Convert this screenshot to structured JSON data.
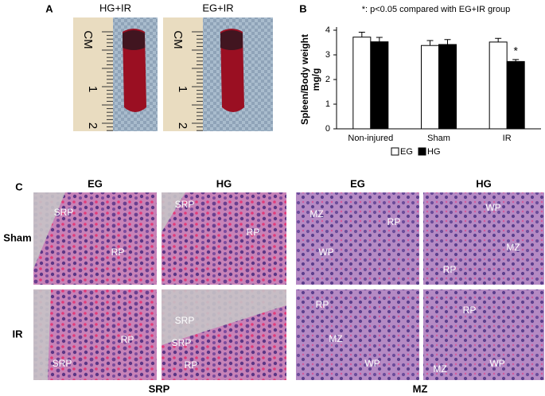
{
  "panels": {
    "A": {
      "label": "A",
      "photos": [
        {
          "label": "HG+IR",
          "ruler": [
            "CM",
            "1",
            "2"
          ]
        },
        {
          "label": "EG+IR",
          "ruler": [
            "CM",
            "1",
            "2"
          ]
        }
      ]
    },
    "B": {
      "label": "B"
    },
    "C": {
      "label": "C",
      "column_headers": [
        "EG",
        "HG",
        "EG",
        "HG"
      ],
      "row_labels": [
        "Sham",
        "IR"
      ],
      "group_labels": [
        "SRP",
        "MZ"
      ],
      "images": [
        [
          [
            "SRP",
            "RP"
          ],
          [
            "SRP",
            "RP"
          ],
          [
            "MZ",
            "RP",
            "WP"
          ],
          [
            "WP",
            "MZ",
            "RP"
          ]
        ],
        [
          [
            "RP",
            "SRP"
          ],
          [
            "SRP",
            "SRP",
            "RP"
          ],
          [
            "RP",
            "MZ",
            "WP"
          ],
          [
            "RP",
            "MZ",
            "WP"
          ]
        ]
      ]
    }
  },
  "chart_data": {
    "type": "bar",
    "note": "*: p<0.05 compared with EG+IR group",
    "marker": "*",
    "y_label": [
      "Spleen/Body weight",
      "mg/g"
    ],
    "categories": [
      "Non-injured",
      "Sham",
      "IR"
    ],
    "series": [
      {
        "name": "EG",
        "color": "#ffffff",
        "values": [
          3.72,
          3.38,
          3.52
        ],
        "errors": [
          0.2,
          0.2,
          0.15
        ]
      },
      {
        "name": "HG",
        "color": "#000000",
        "values": [
          3.53,
          3.42,
          2.73
        ],
        "errors": [
          0.18,
          0.2,
          0.08
        ]
      }
    ],
    "ylim": [
      0,
      4
    ],
    "yticks": [
      0,
      1,
      2,
      3,
      4
    ],
    "grid": false
  }
}
